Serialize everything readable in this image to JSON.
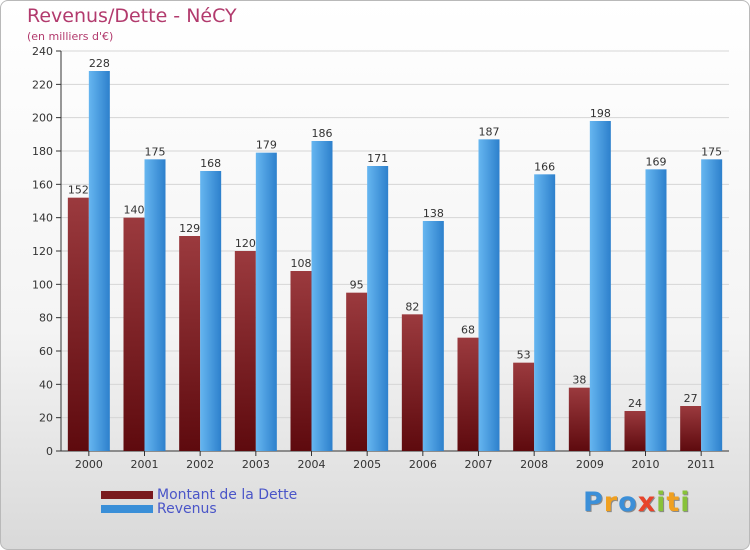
{
  "brand": {
    "letters": [
      {
        "ch": "P",
        "color": "#3b8fd8"
      },
      {
        "ch": "r",
        "color": "#f0a020"
      },
      {
        "ch": "o",
        "color": "#3b8fd8"
      },
      {
        "ch": "x",
        "color": "#e8442a"
      },
      {
        "ch": "i",
        "color": "#88c23a"
      },
      {
        "ch": "t",
        "color": "#f0a020"
      },
      {
        "ch": "i",
        "color": "#88c23a"
      }
    ]
  },
  "chart_data": {
    "type": "bar",
    "title": "Revenus/Dette - NéCY",
    "subtitle": "(en milliers d'€)",
    "xlabel": "",
    "ylabel": "",
    "categories": [
      "2000",
      "2001",
      "2002",
      "2003",
      "2004",
      "2005",
      "2006",
      "2007",
      "2008",
      "2009",
      "2010",
      "2011"
    ],
    "series": [
      {
        "name": "Montant de la Dette",
        "color": "#7a1a1d",
        "values": [
          152,
          140,
          129,
          120,
          108,
          95,
          82,
          68,
          53,
          38,
          24,
          27
        ]
      },
      {
        "name": "Revenus",
        "color": "#3a8fd8",
        "values": [
          228,
          175,
          168,
          179,
          186,
          171,
          138,
          187,
          166,
          198,
          169,
          175
        ]
      }
    ],
    "ylim": [
      0,
      240
    ],
    "yticks": [
      0,
      20,
      40,
      60,
      80,
      100,
      120,
      140,
      160,
      180,
      200,
      220,
      240
    ],
    "grid": true,
    "legend": "bottom-left"
  }
}
